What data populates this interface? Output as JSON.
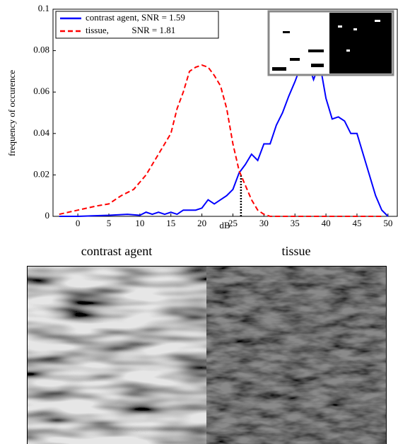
{
  "chart_data": {
    "type": "line",
    "x_label": "dB",
    "y_label": "frequency of occurence",
    "xlim": [
      -4,
      51.5
    ],
    "ylim": [
      0,
      0.1
    ],
    "xticks": [
      0,
      5,
      10,
      15,
      20,
      25,
      30,
      35,
      40,
      45,
      50
    ],
    "yticks": [
      0,
      0.02,
      0.04,
      0.06,
      0.08,
      0.1
    ],
    "legend": "upper left",
    "series": [
      {
        "name": "contrast agent, SNR = 1.59",
        "color": "#0000ff",
        "dash": "solid",
        "x": [
          -3,
          0,
          5,
          8,
          10,
          11,
          12,
          13,
          14,
          15,
          16,
          17,
          19,
          20,
          21,
          22,
          23,
          24,
          25,
          26,
          27,
          28,
          29,
          30,
          31,
          32,
          33,
          34,
          35,
          36,
          37,
          38,
          39,
          40,
          41,
          42,
          43,
          44,
          45,
          46,
          47,
          48,
          49,
          50
        ],
        "values": [
          0,
          0,
          0.0005,
          0.001,
          0.0005,
          0.002,
          0.001,
          0.002,
          0.001,
          0.002,
          0.001,
          0.003,
          0.003,
          0.004,
          0.008,
          0.006,
          0.008,
          0.01,
          0.013,
          0.021,
          0.025,
          0.03,
          0.027,
          0.035,
          0.035,
          0.044,
          0.05,
          0.058,
          0.065,
          0.073,
          0.075,
          0.066,
          0.074,
          0.057,
          0.047,
          0.048,
          0.046,
          0.04,
          0.04,
          0.03,
          0.02,
          0.01,
          0.003,
          0
        ]
      },
      {
        "name": "tissue,          SNR = 1.81",
        "color": "#ff0000",
        "dash": "dashed",
        "x": [
          -3,
          0,
          3,
          5,
          7,
          9,
          11,
          13,
          15,
          16,
          17,
          18,
          19,
          20,
          21,
          22,
          23,
          24,
          25,
          26,
          27,
          28,
          29,
          30,
          31,
          35,
          40,
          45,
          49
        ],
        "values": [
          0.001,
          0.003,
          0.005,
          0.006,
          0.01,
          0.013,
          0.02,
          0.03,
          0.04,
          0.052,
          0.06,
          0.07,
          0.072,
          0.073,
          0.072,
          0.068,
          0.063,
          0.052,
          0.035,
          0.022,
          0.015,
          0.008,
          0.003,
          0.001,
          0,
          0,
          0,
          0,
          0
        ]
      }
    ],
    "crossover": {
      "x": 26.3,
      "y": 0.02
    }
  },
  "panels": {
    "left": "contrast agent",
    "right": "tissue"
  }
}
